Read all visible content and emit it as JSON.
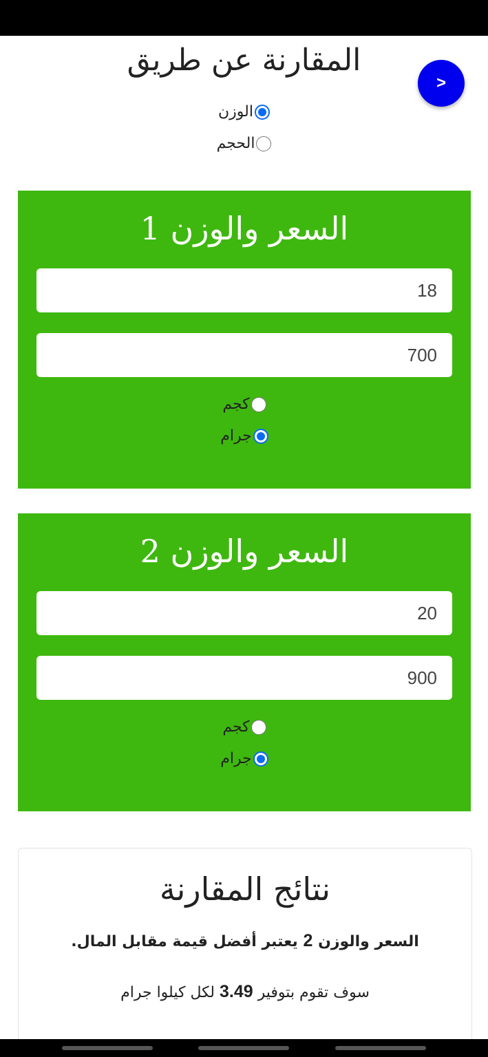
{
  "header": {
    "title": "المقارنة عن طريق",
    "next_button": ">"
  },
  "compare_by": {
    "options": [
      {
        "label": "الوزن",
        "selected": true
      },
      {
        "label": "الحجم",
        "selected": false
      }
    ]
  },
  "items": [
    {
      "title": "السعر والوزن 1",
      "price": "18",
      "weight": "700",
      "units": [
        {
          "label": "كجم",
          "selected": false
        },
        {
          "label": "جرام",
          "selected": true
        }
      ]
    },
    {
      "title": "السعر والوزن 2",
      "price": "20",
      "weight": "900",
      "units": [
        {
          "label": "كجم",
          "selected": false
        },
        {
          "label": "جرام",
          "selected": true
        }
      ]
    }
  ],
  "results": {
    "title": "نتائج المقارنة",
    "line1_pre": "السعر والوزن",
    "line1_num": "2",
    "line1_post": "يعتبر أفضل قيمة مقابل المال.",
    "line2_pre": "سوف تقوم بتوفير",
    "line2_num": "3.49",
    "line2_post": "لكل كيلوا جرام"
  },
  "colors": {
    "card": "#3eb80f",
    "fab": "#0000ee",
    "radio": "#0a6cf5"
  }
}
